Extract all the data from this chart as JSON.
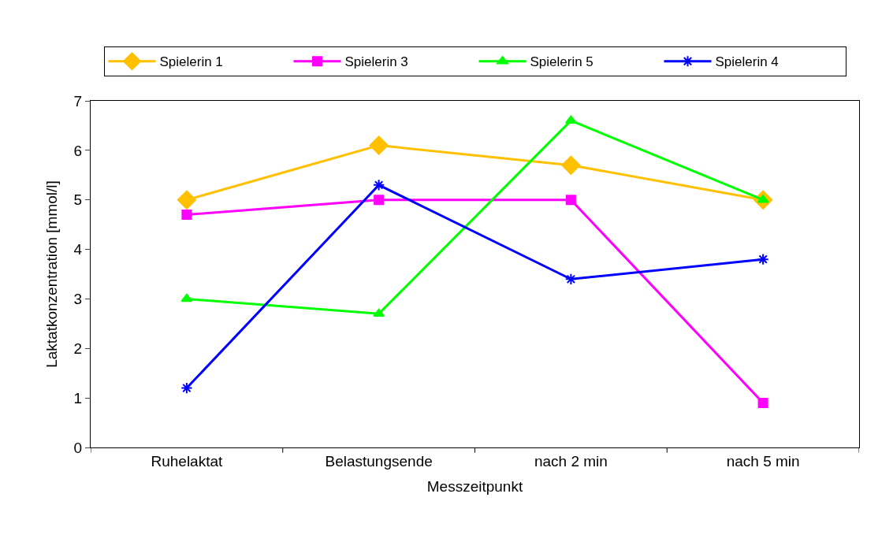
{
  "chart_data": {
    "type": "line",
    "xlabel": "Messzeitpunkt",
    "ylabel": "Laktatkonzentration [mmol/l]",
    "categories": [
      "Ruhelaktat",
      "Belastungsende",
      "nach 2 min",
      "nach 5 min"
    ],
    "series": [
      {
        "name": "Spielerin 1",
        "color": "#ffc000",
        "marker": "diamond",
        "values": [
          5.0,
          6.1,
          5.7,
          5.0
        ]
      },
      {
        "name": "Spielerin 3",
        "color": "#ff00ff",
        "marker": "square",
        "values": [
          4.7,
          5.0,
          5.0,
          0.9
        ]
      },
      {
        "name": "Spielerin 5",
        "color": "#00ff00",
        "marker": "triangle",
        "values": [
          3.0,
          2.7,
          6.6,
          5.0
        ]
      },
      {
        "name": "Spielerin 4",
        "color": "#0000ff",
        "marker": "cross",
        "values": [
          1.2,
          5.3,
          3.4,
          3.8
        ]
      }
    ],
    "ylim": [
      0,
      7
    ],
    "yticks": [
      0,
      1,
      2,
      3,
      4,
      5,
      6,
      7
    ],
    "grid": false,
    "legend": "top",
    "line_style": "solid"
  }
}
